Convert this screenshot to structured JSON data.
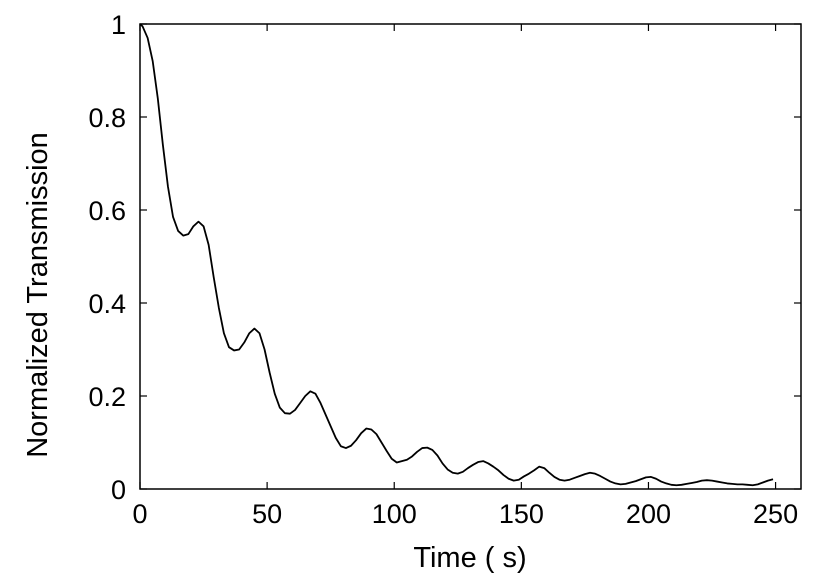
{
  "chart_data": {
    "type": "line",
    "title": "",
    "xlabel": "Time ( s)",
    "ylabel": "Normalized Transmission",
    "xlim": [
      0,
      260
    ],
    "ylim": [
      0,
      1
    ],
    "xticks": [
      0,
      50,
      100,
      150,
      200,
      250
    ],
    "xtick_labels": [
      "0",
      "50",
      "100",
      "150",
      "200",
      "250"
    ],
    "yticks": [
      0,
      0.2,
      0.4,
      0.6,
      0.8,
      1
    ],
    "ytick_labels": [
      "0",
      "0.2",
      "0.4",
      "0.6",
      "0.8",
      "1"
    ],
    "grid": false,
    "legend": "none",
    "line_color": "#000000",
    "series": [
      {
        "x": [
          0,
          1,
          3,
          5,
          7,
          9,
          11,
          13,
          15,
          17,
          19,
          21,
          23,
          25,
          27,
          29,
          31,
          33,
          35,
          37,
          39,
          41,
          43,
          45,
          47,
          49,
          51,
          53,
          55,
          57,
          59,
          61,
          63,
          65,
          67,
          69,
          71,
          73,
          75,
          77,
          79,
          81,
          83,
          85,
          87,
          89,
          91,
          93,
          95,
          97,
          99,
          101,
          103,
          105,
          107,
          109,
          111,
          113,
          115,
          117,
          119,
          121,
          123,
          125,
          127,
          129,
          131,
          133,
          135,
          137,
          139,
          141,
          143,
          145,
          147,
          149,
          151,
          153,
          155,
          157,
          159,
          161,
          163,
          165,
          167,
          169,
          171,
          173,
          175,
          177,
          179,
          181,
          183,
          185,
          187,
          189,
          191,
          193,
          195,
          197,
          199,
          201,
          203,
          205,
          207,
          209,
          211,
          213,
          215,
          217,
          219,
          221,
          223,
          225,
          227,
          229,
          231,
          233,
          235,
          237,
          239,
          241,
          243,
          245,
          247,
          249
        ],
        "y": [
          1.0,
          0.995,
          0.97,
          0.92,
          0.84,
          0.74,
          0.65,
          0.585,
          0.555,
          0.545,
          0.548,
          0.565,
          0.575,
          0.565,
          0.525,
          0.455,
          0.39,
          0.335,
          0.305,
          0.298,
          0.3,
          0.315,
          0.335,
          0.345,
          0.335,
          0.3,
          0.25,
          0.205,
          0.175,
          0.163,
          0.162,
          0.17,
          0.185,
          0.2,
          0.21,
          0.205,
          0.185,
          0.16,
          0.135,
          0.11,
          0.092,
          0.088,
          0.093,
          0.105,
          0.12,
          0.13,
          0.128,
          0.118,
          0.1,
          0.082,
          0.065,
          0.057,
          0.06,
          0.063,
          0.07,
          0.08,
          0.088,
          0.089,
          0.084,
          0.072,
          0.055,
          0.042,
          0.035,
          0.033,
          0.037,
          0.045,
          0.052,
          0.058,
          0.06,
          0.055,
          0.048,
          0.04,
          0.03,
          0.022,
          0.018,
          0.02,
          0.027,
          0.033,
          0.04,
          0.048,
          0.045,
          0.035,
          0.026,
          0.02,
          0.018,
          0.02,
          0.024,
          0.028,
          0.032,
          0.035,
          0.033,
          0.028,
          0.022,
          0.016,
          0.012,
          0.01,
          0.011,
          0.014,
          0.017,
          0.021,
          0.025,
          0.026,
          0.022,
          0.016,
          0.012,
          0.009,
          0.008,
          0.009,
          0.011,
          0.013,
          0.015,
          0.018,
          0.019,
          0.018,
          0.016,
          0.014,
          0.012,
          0.011,
          0.01,
          0.01,
          0.009,
          0.008,
          0.01,
          0.014,
          0.018,
          0.021
        ]
      }
    ]
  }
}
